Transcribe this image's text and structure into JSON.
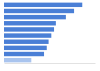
{
  "chart_data": {
    "type": "bar",
    "orientation": "horizontal",
    "categories": [
      null,
      null,
      null,
      null,
      null,
      null,
      null,
      null,
      null,
      null
    ],
    "values": [
      86,
      77,
      68,
      57,
      55,
      52,
      49,
      47,
      44,
      30
    ],
    "colors": [
      "#4a7fd6",
      "#4a7fd6",
      "#4a7fd6",
      "#4a7fd6",
      "#4a7fd6",
      "#4a7fd6",
      "#4a7fd6",
      "#4a7fd6",
      "#4a7fd6",
      "#a9c4ee"
    ],
    "xlim": [
      0,
      100
    ],
    "tick_labels": false,
    "grid": false
  }
}
